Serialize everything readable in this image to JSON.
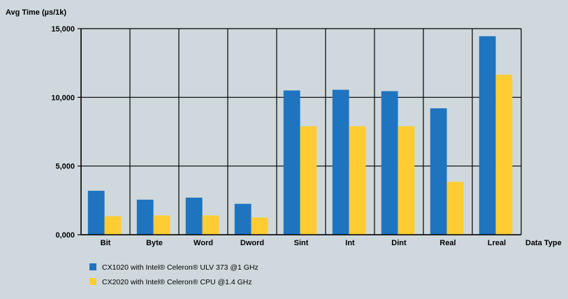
{
  "chart_data": {
    "type": "bar",
    "ylabel": "Avg Time (µs/1k)",
    "xlabel": "Data Type",
    "ylim": [
      0,
      15000
    ],
    "yticks": [
      {
        "value": 0,
        "label": "0,000"
      },
      {
        "value": 5000,
        "label": "5,000"
      },
      {
        "value": 10000,
        "label": "10,000"
      },
      {
        "value": 15000,
        "label": "15,000"
      }
    ],
    "categories": [
      "Bit",
      "Byte",
      "Word",
      "Dword",
      "Sint",
      "Int",
      "Dint",
      "Real",
      "Lreal"
    ],
    "series": [
      {
        "name": "CX1020 with Intel® Celeron® ULV 373 @1 GHz",
        "color": "#1f74bf",
        "values": [
          3200,
          2550,
          2700,
          2250,
          10500,
          10550,
          10450,
          9200,
          14450
        ]
      },
      {
        "name": "CX2020 with Intel® Celeron® CPU @1.4 GHz",
        "color": "#ffcc33",
        "values": [
          1350,
          1400,
          1400,
          1250,
          7900,
          7900,
          7900,
          3850,
          11650
        ]
      }
    ],
    "grid": {
      "horizontal": true,
      "vertical": true
    },
    "legend_position": "bottom-left"
  }
}
